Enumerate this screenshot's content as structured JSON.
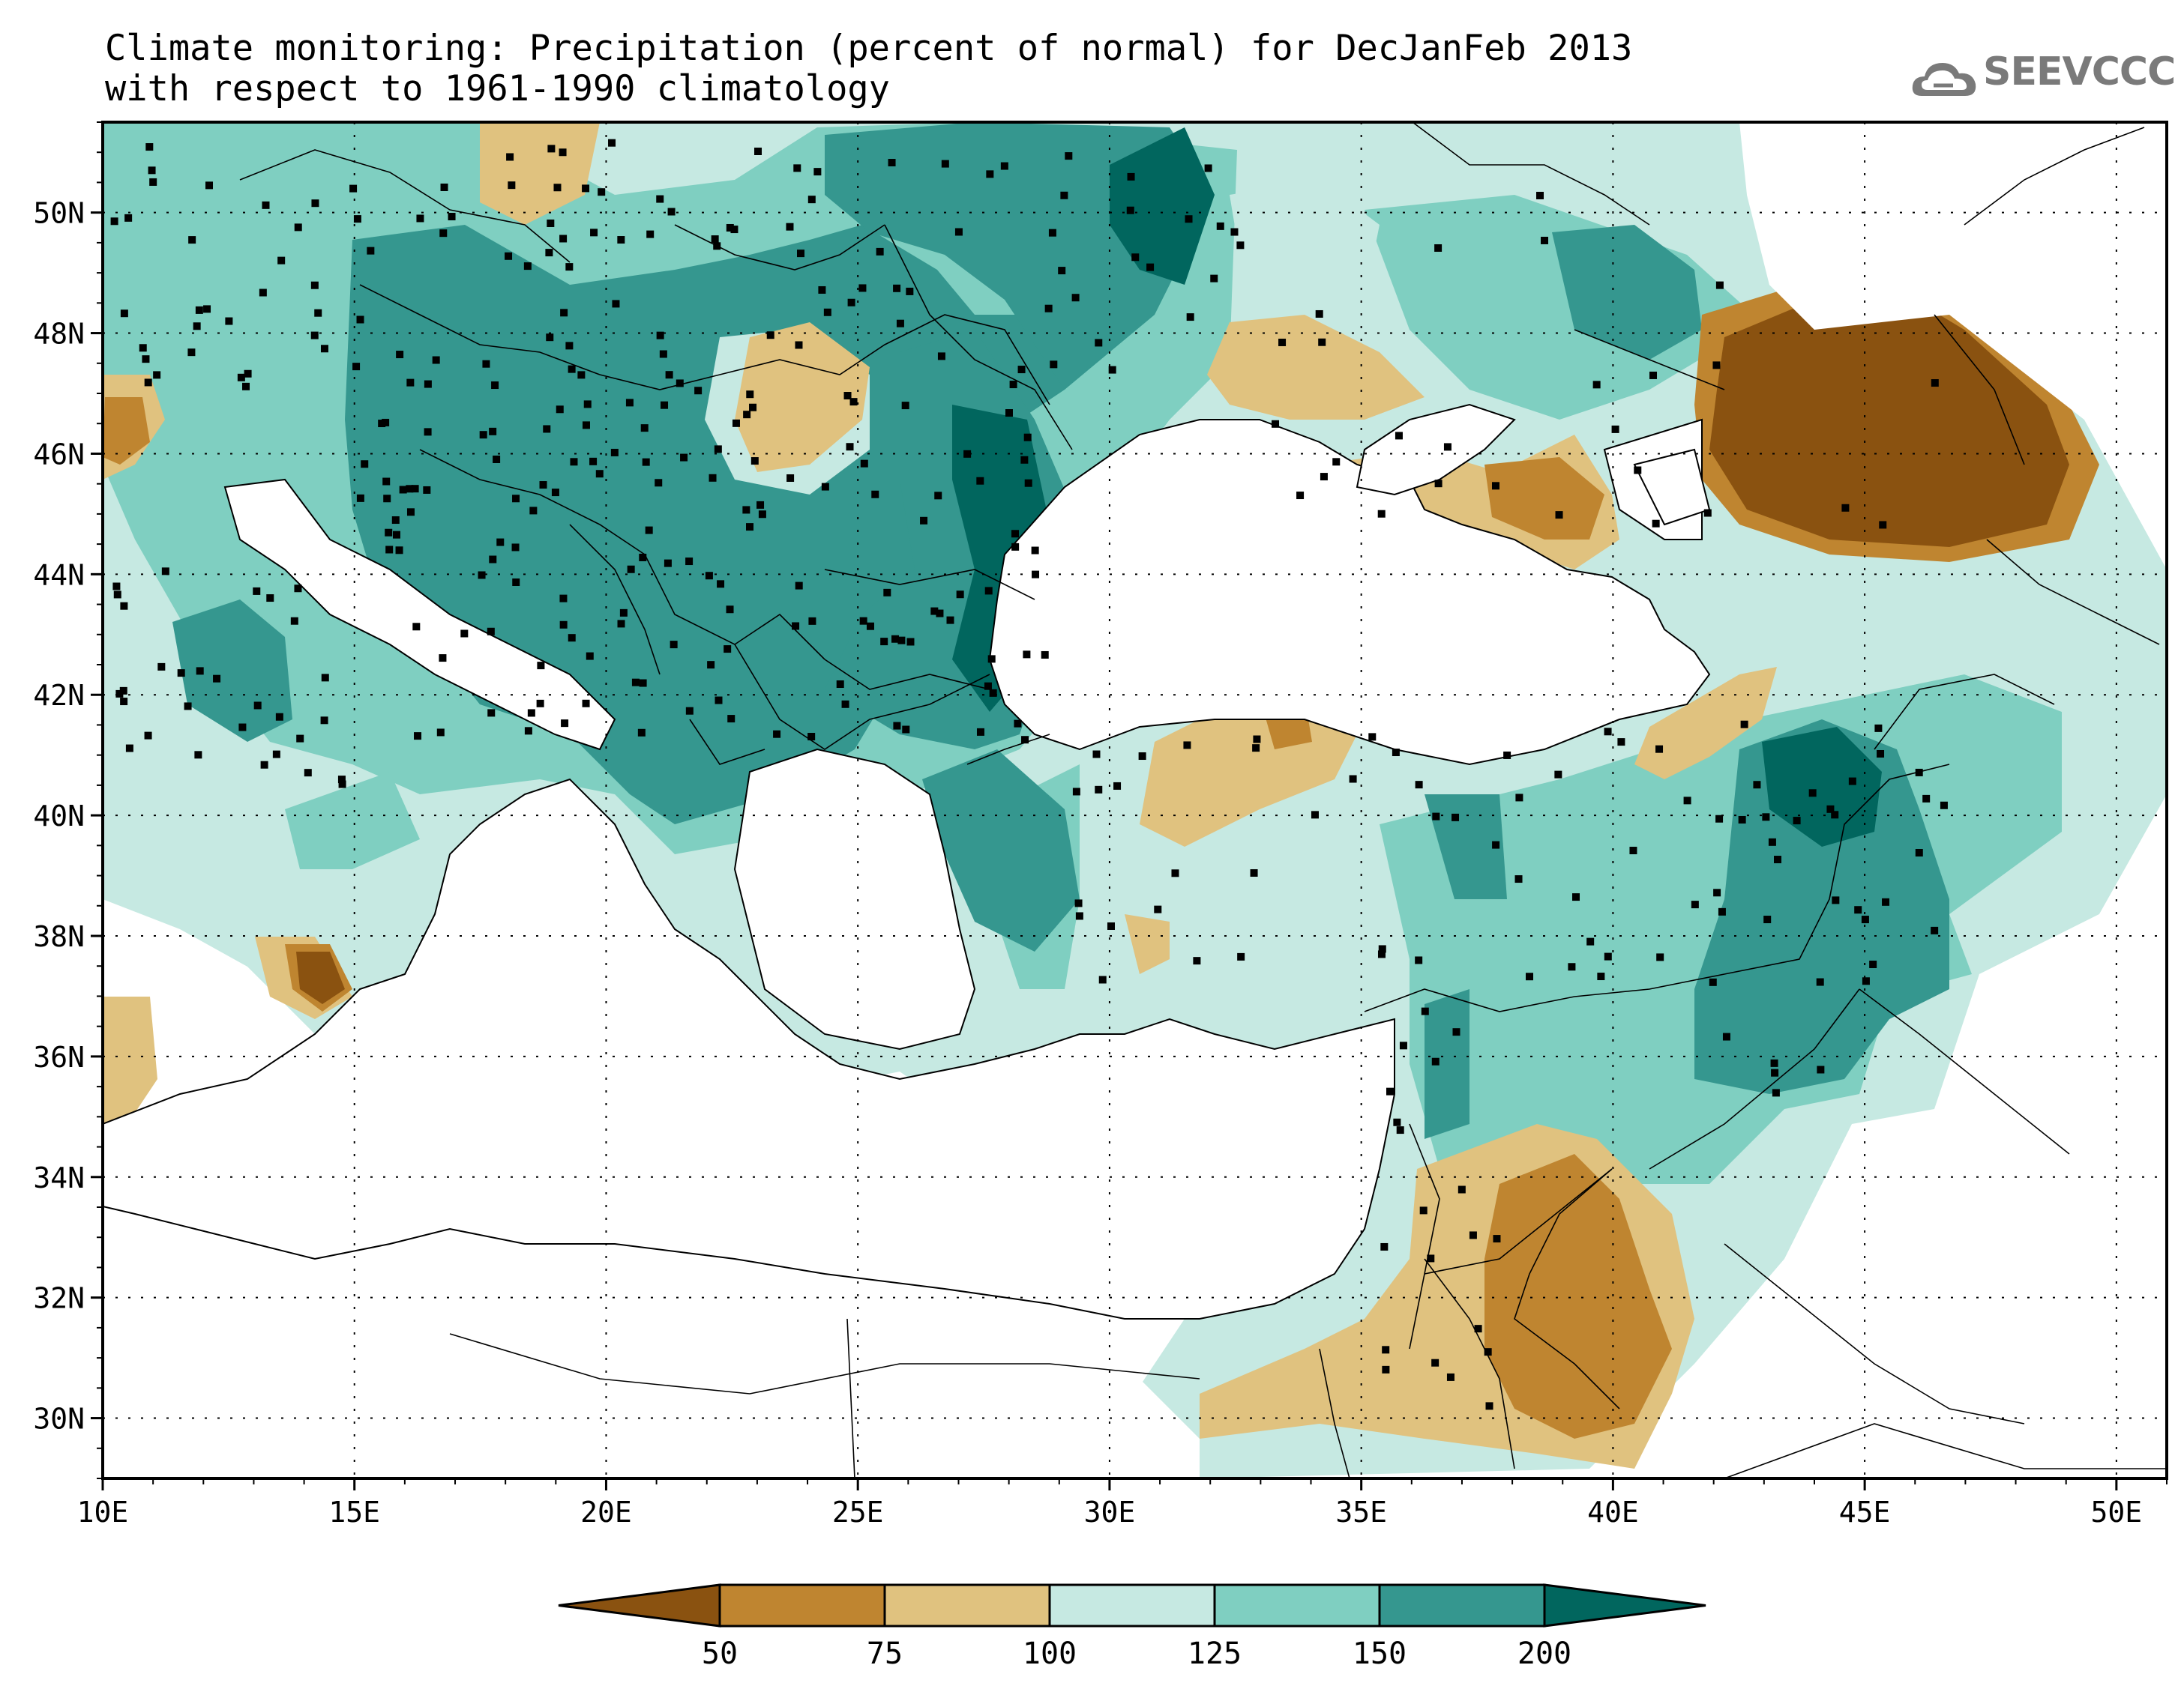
{
  "title": {
    "line1": "Climate monitoring: Precipitation (percent of normal) for DecJanFeb 2013",
    "line2": "with respect to 1961-1990 climatology"
  },
  "logo": {
    "text": "SEEVCCC",
    "icon": "cloud-icon"
  },
  "map": {
    "lon_range": [
      10,
      51
    ],
    "lat_range": [
      29,
      51.5
    ],
    "x_ticks": [
      "10E",
      "15E",
      "20E",
      "25E",
      "30E",
      "35E",
      "40E",
      "45E",
      "50E"
    ],
    "y_ticks": [
      "30N",
      "32N",
      "34N",
      "36N",
      "38N",
      "40N",
      "42N",
      "44N",
      "46N",
      "48N",
      "50N"
    ],
    "gridlines": "dotted"
  },
  "colorbar": {
    "levels": [
      "50",
      "75",
      "100",
      "125",
      "150",
      "200"
    ],
    "colors": [
      "#8a5210",
      "#bf8530",
      "#e0c27f",
      "#c6e9e2",
      "#7fcfc1",
      "#35978f",
      "#01665e"
    ]
  },
  "chart_data": {
    "type": "heatmap",
    "title": "Climate monitoring: Precipitation (percent of normal) for DecJanFeb 2013 with respect to 1961-1990 climatology",
    "xlabel": "",
    "ylabel": "",
    "x_range": [
      10,
      51
    ],
    "y_range": [
      29,
      51.5
    ],
    "bins": [
      {
        "range": "<50",
        "color": "#8a5210"
      },
      {
        "range": "50-75",
        "color": "#bf8530"
      },
      {
        "range": "75-100",
        "color": "#e0c27f"
      },
      {
        "range": "100-125",
        "color": "#c6e9e2"
      },
      {
        "range": "125-150",
        "color": "#7fcfc1"
      },
      {
        "range": "150-200",
        "color": "#35978f"
      },
      {
        "range": ">200",
        "color": "#01665e"
      }
    ],
    "grid": true,
    "legend": "bottom colorbar"
  }
}
